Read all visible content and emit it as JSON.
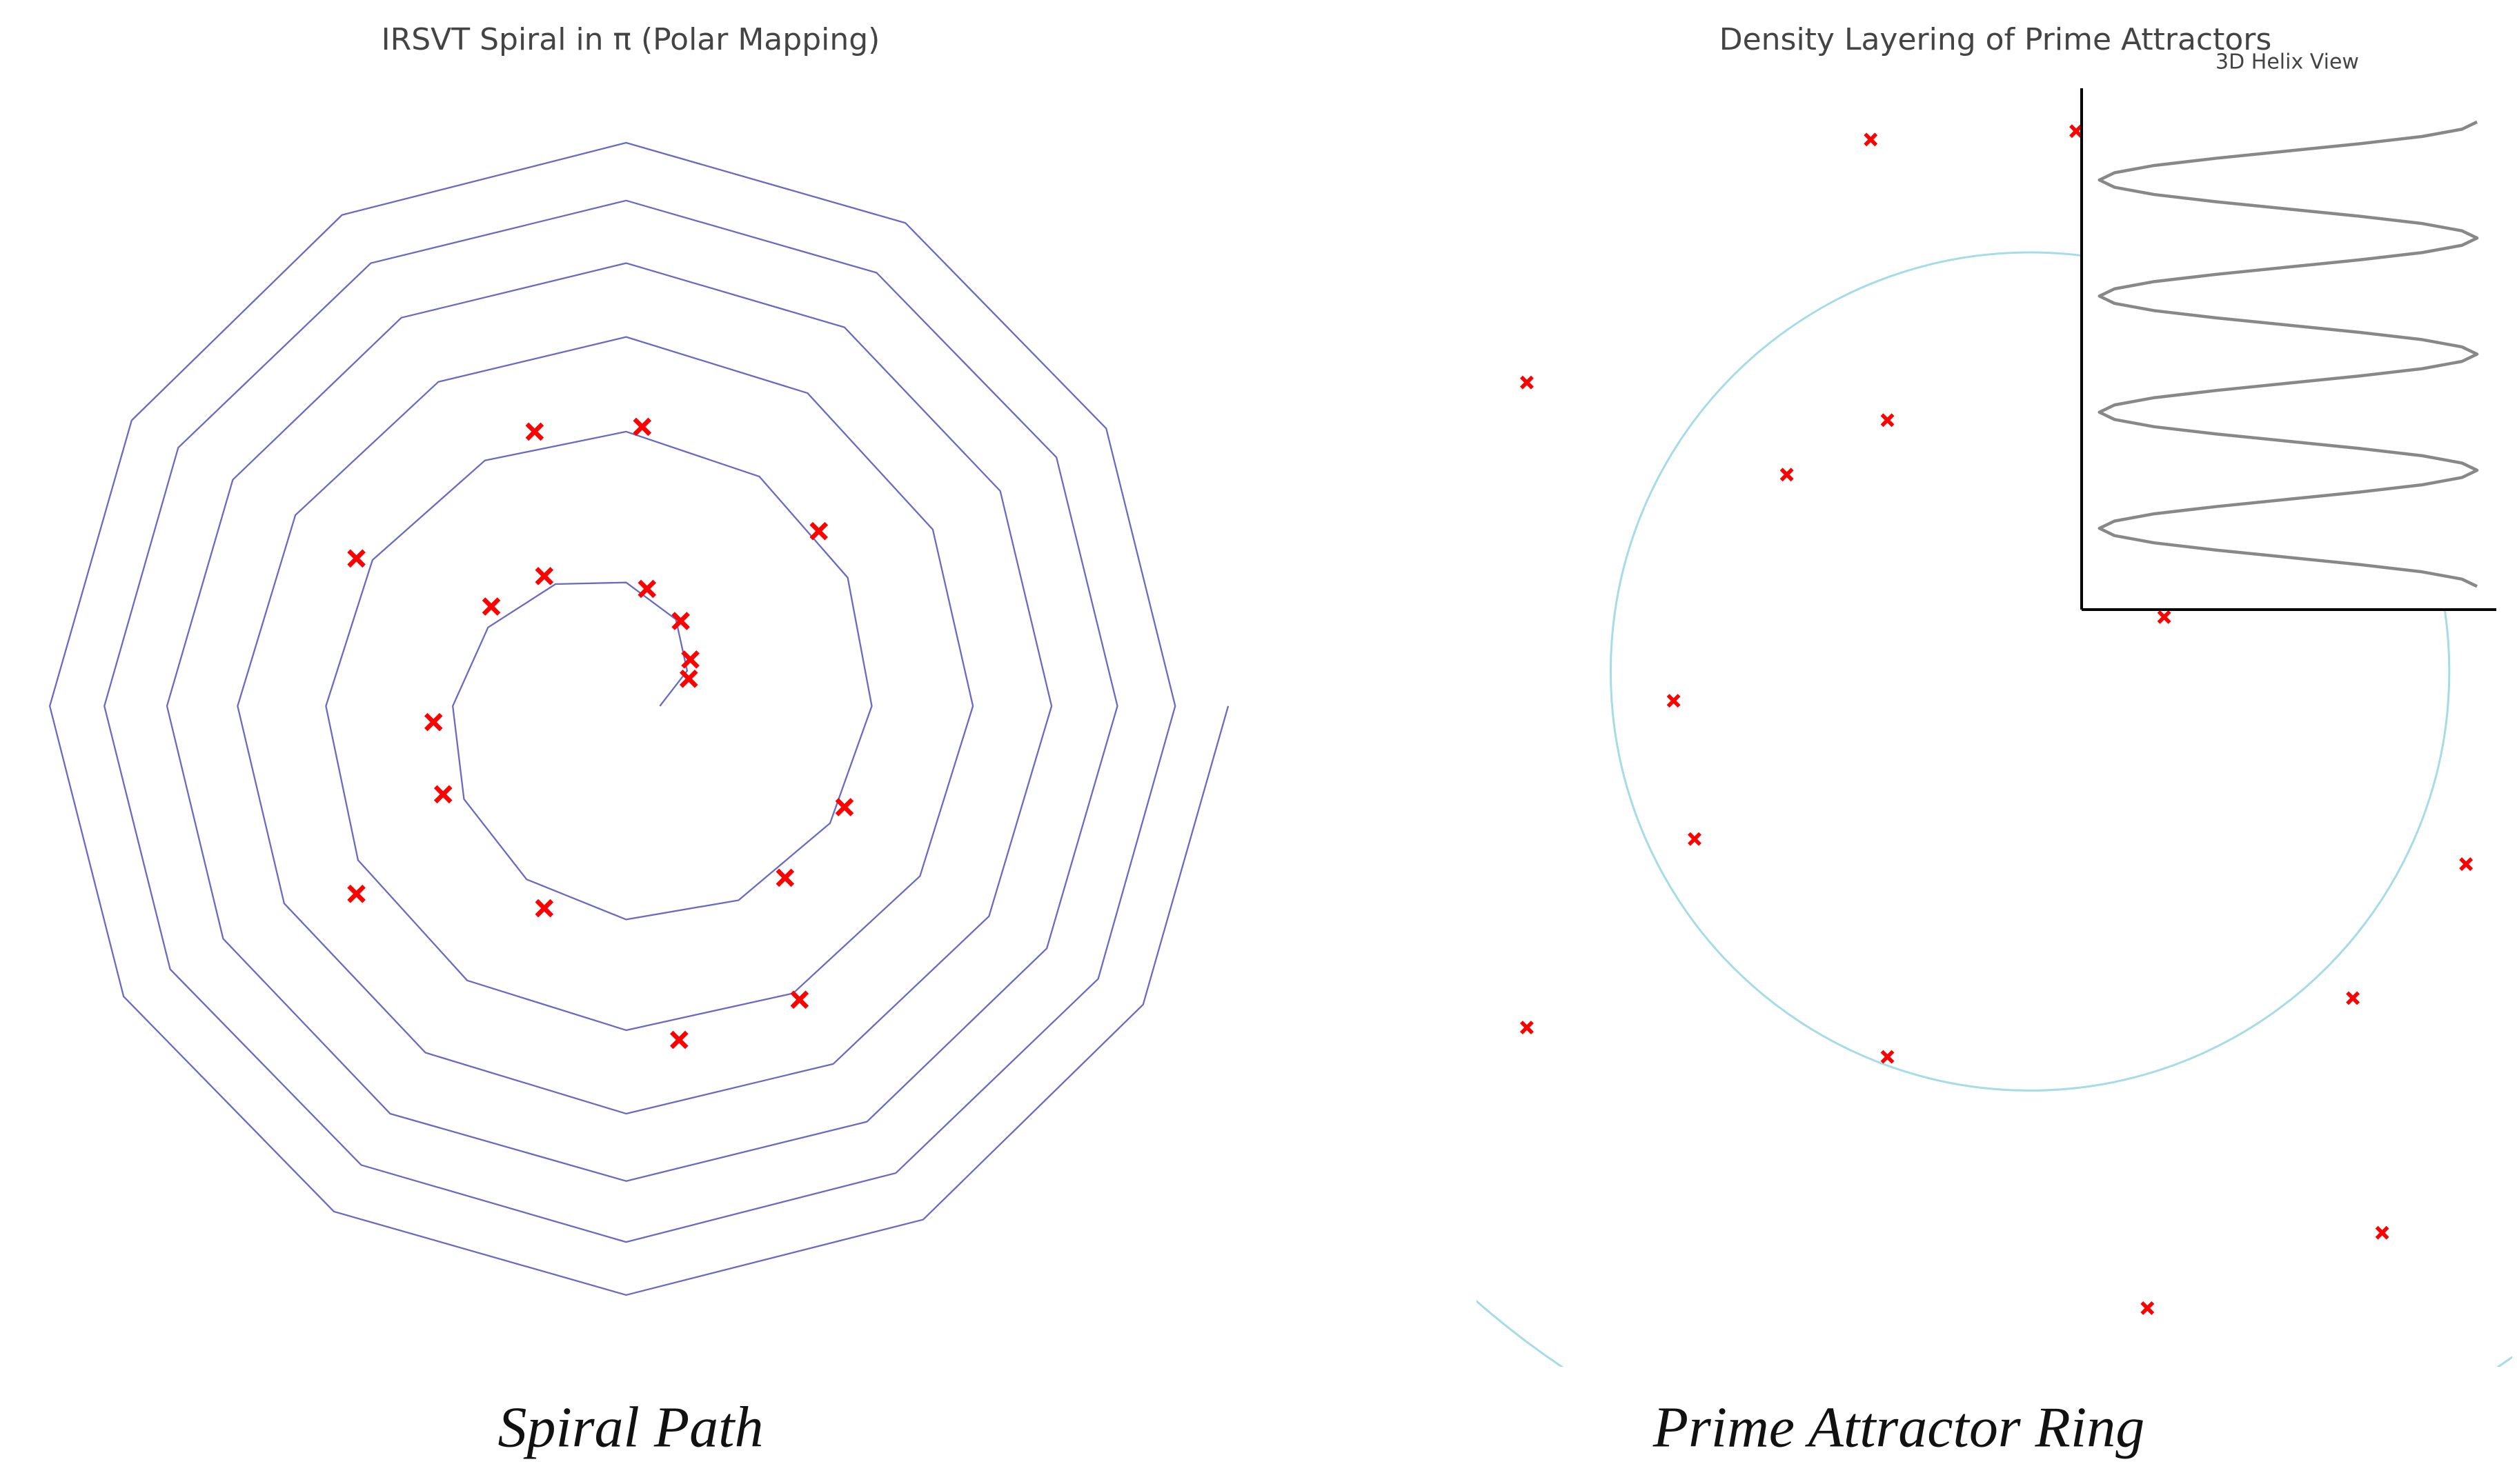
{
  "chart_data": [
    {
      "type": "line",
      "title": "IRSVT Spiral in π (Polar Mapping)",
      "caption": "Spiral Path",
      "xlim": [
        -390,
        390
      ],
      "ylim": [
        -410,
        400
      ],
      "color": "#6a6ac4",
      "x": [
        21,
        38,
        31,
        0,
        -44,
        -86,
        -108,
        -101,
        -62,
        0,
        70,
        127,
        153,
        138,
        83,
        0,
        -88,
        -158,
        -187,
        -167,
        -99,
        0,
        104,
        183,
        216,
        191,
        113,
        0,
        -117,
        -206,
        -242,
        -213,
        -125,
        0,
        129,
        226,
        265,
        233,
        136,
        0,
        -140,
        -245,
        -286,
        -251,
        -147,
        0,
        150,
        262,
        306,
        268,
        156,
        0,
        -159,
        -279,
        -325,
        -284,
        -165,
        0,
        168,
        294,
        342,
        299,
        174,
        0,
        -177,
        -308,
        -359,
        -313,
        -182,
        0,
        185,
        322,
        375
      ],
      "y": [
        0,
        22,
        54,
        77,
        76,
        49,
        0,
        -58,
        -108,
        -133,
        -121,
        -73,
        0,
        80,
        143,
        171,
        153,
        91,
        0,
        -96,
        -171,
        -202,
        -179,
        -106,
        0,
        110,
        195,
        230,
        202,
        119,
        0,
        -123,
        -216,
        -254,
        -223,
        -131,
        0,
        134,
        236,
        276,
        242,
        141,
        0,
        -145,
        -254,
        -296,
        -259,
        -151,
        0,
        155,
        270,
        315,
        276,
        161,
        0,
        -164,
        -286,
        -334,
        -291,
        -170,
        0,
        173,
        301,
        351,
        306,
        178,
        0,
        -181,
        -315,
        -367,
        -320,
        -186,
        0
      ],
      "points": {
        "color": "#ff0000",
        "x": [
          -57,
          10,
          120,
          -168,
          -51,
          -84,
          13,
          34,
          40,
          39,
          -120,
          -114,
          136,
          99,
          -168,
          -51,
          108,
          33
        ],
        "y": [
          171,
          174,
          109,
          92,
          81,
          62,
          73,
          53,
          29,
          17,
          -10,
          -55,
          -63,
          -107,
          -117,
          -126,
          -183,
          -208
        ]
      }
    },
    {
      "type": "scatter",
      "title": "Density Layering of Prime Attractors",
      "caption": "Prime Attractor Ring",
      "xlim": [
        -1.32,
        1.15
      ],
      "ylim": [
        -1.66,
        1.45
      ],
      "color": "#ff0000",
      "rings": [
        1,
        2
      ],
      "ring_color": "#a6dbe8",
      "x": [
        -0.38,
        0.11,
        -1.2,
        -0.34,
        -0.58,
        0.32,
        -0.85,
        -0.8,
        1.04,
        -1.2,
        0.77,
        -0.34,
        0.84,
        0.28
      ],
      "y": [
        1.27,
        1.29,
        0.69,
        0.6,
        0.47,
        0.13,
        -0.07,
        -0.4,
        -0.46,
        -0.85,
        -0.78,
        -0.92,
        -1.34,
        -1.52
      ]
    },
    {
      "type": "line",
      "title": "3D Helix View",
      "xlim": [
        -1.094,
        1.102
      ],
      "ylim": [
        -0.2,
        4.29
      ],
      "color": "#888888",
      "x": [
        1,
        0.92,
        0.71,
        0.38,
        0,
        -0.38,
        -0.71,
        -0.92,
        -1,
        -0.92,
        -0.71,
        -0.38,
        0,
        0.38,
        0.71,
        0.92,
        1,
        0.92,
        0.71,
        0.38,
        0,
        -0.38,
        -0.71,
        -0.92,
        -1,
        -0.92,
        -0.71,
        -0.38,
        0,
        0.38,
        0.71,
        0.92,
        1,
        0.92,
        0.71,
        0.38,
        0,
        -0.38,
        -0.71,
        -0.92,
        -1,
        -0.92,
        -0.71,
        -0.38,
        0,
        0.38,
        0.71,
        0.92,
        1,
        0.92,
        0.71,
        0.38,
        0,
        -0.38,
        -0.71,
        -0.92,
        -1,
        -0.92,
        -0.71,
        -0.38,
        0,
        0.38,
        0.71,
        0.92,
        1
      ],
      "y": [
        0,
        0.0625,
        0.125,
        0.1875,
        0.25,
        0.3125,
        0.375,
        0.4375,
        0.5,
        0.5625,
        0.625,
        0.6875,
        0.75,
        0.8125,
        0.875,
        0.9375,
        1,
        1.0625,
        1.125,
        1.1875,
        1.25,
        1.3125,
        1.375,
        1.4375,
        1.5,
        1.5625,
        1.625,
        1.6875,
        1.75,
        1.8125,
        1.875,
        1.9375,
        2,
        2.0625,
        2.125,
        2.1875,
        2.25,
        2.3125,
        2.375,
        2.4375,
        2.5,
        2.5625,
        2.625,
        2.6875,
        2.75,
        2.8125,
        2.875,
        2.9375,
        3,
        3.0625,
        3.125,
        3.1875,
        3.25,
        3.3125,
        3.375,
        3.4375,
        3.5,
        3.5625,
        3.625,
        3.6875,
        3.75,
        3.8125,
        3.875,
        3.9375,
        4
      ]
    }
  ]
}
